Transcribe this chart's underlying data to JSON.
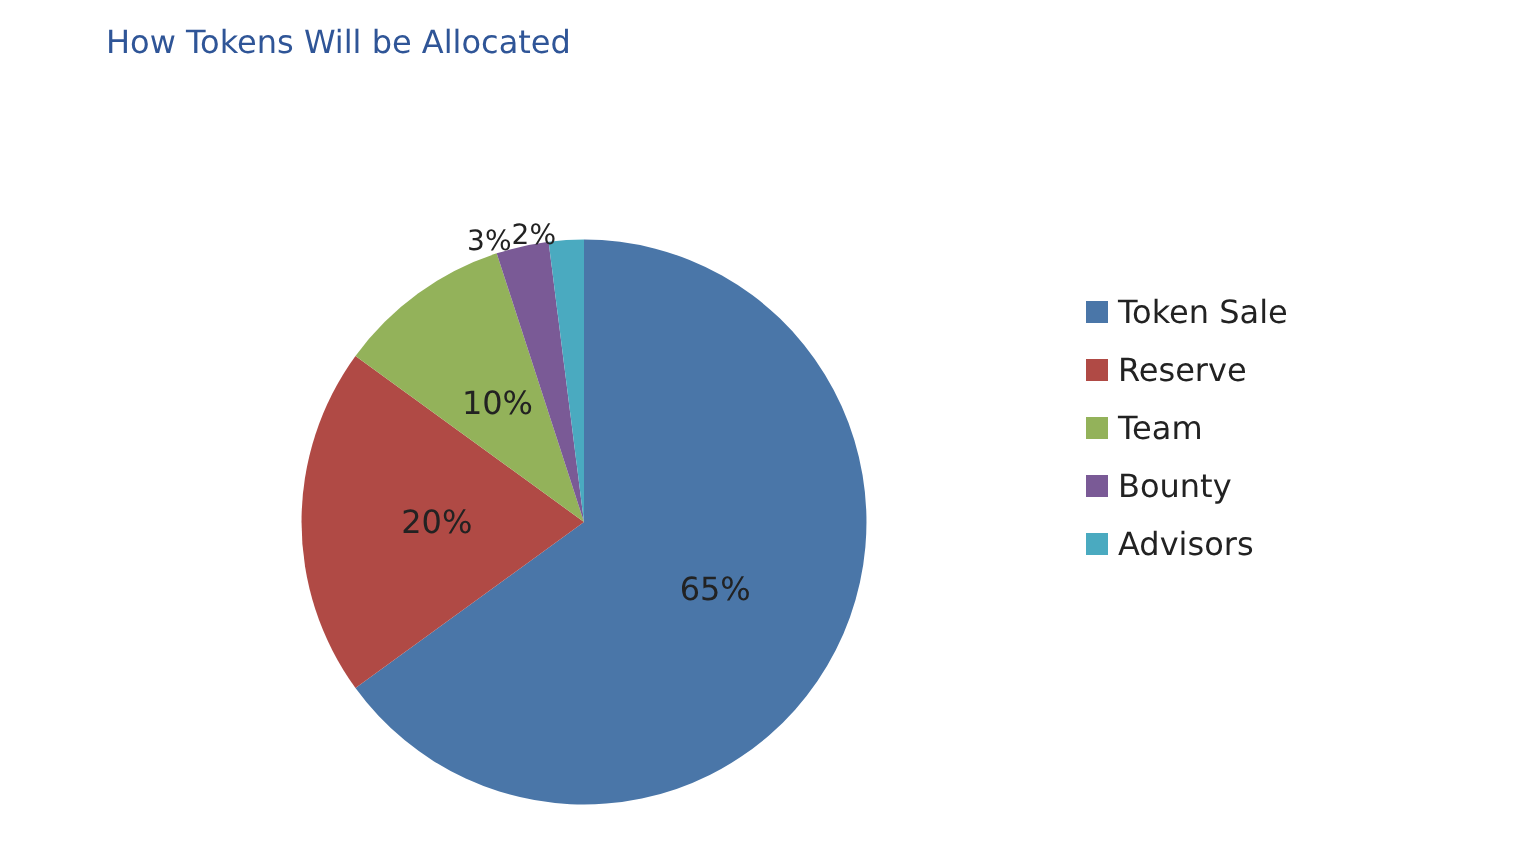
{
  "chart_data": {
    "type": "pie",
    "title": "How Tokens Will be Allocated",
    "categories": [
      "Token Sale",
      "Reserve",
      "Team",
      "Bounty",
      "Advisors"
    ],
    "values": [
      65,
      20,
      10,
      3,
      2
    ],
    "value_labels": [
      "65%",
      "20%",
      "10%",
      "3%",
      "2%"
    ],
    "colors": [
      "#4a76a8",
      "#b04a45",
      "#93b25a",
      "#7a5a96",
      "#4aaac0"
    ],
    "legend": "right"
  }
}
